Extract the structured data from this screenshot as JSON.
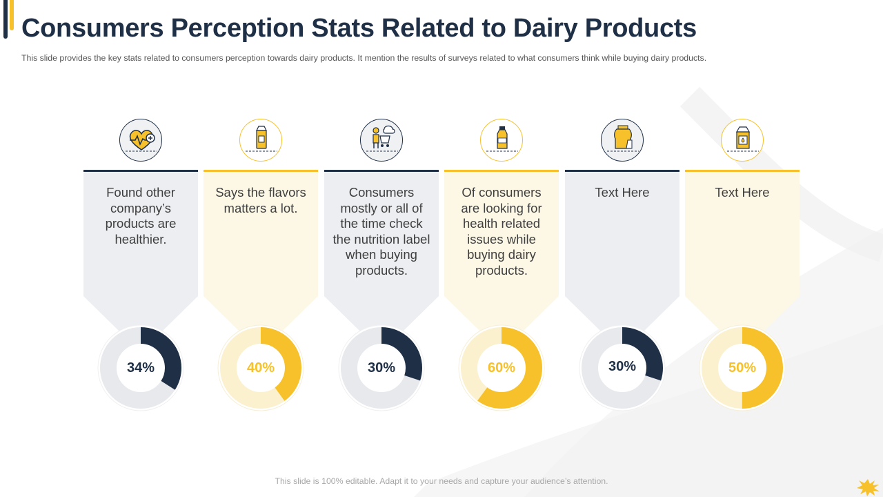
{
  "slide": {
    "title": "Consumers Perception Stats Related to Dairy Products",
    "subtitle": "This slide provides  the key stats related to consumers perception towards dairy products. It mention the results of surveys related to what consumers think while buying dairy products.",
    "footer": "This slide is 100% editable. Adapt it to your needs and capture your audience’s attention."
  },
  "colors": {
    "dark": "#1e2f46",
    "yellow": "#f6c12a",
    "dark_panel": "#eceef1",
    "yellow_panel": "#fdf8e6",
    "dark_track": "#e7e9ed",
    "yellow_track": "#fbf1cf"
  },
  "chart_data": {
    "type": "donut",
    "title": "Consumers Perception Stats Related to Dairy Products",
    "unit": "%",
    "items": [
      {
        "value": 34,
        "label": "34%",
        "text": "Found other company’s products are healthier.",
        "icon": "heart-rate-plus-icon",
        "theme": "dark"
      },
      {
        "value": 40,
        "label": "40%",
        "text": "Says the flavors matters a lot.",
        "icon": "milk-carton-icon",
        "theme": "yellow"
      },
      {
        "value": 30,
        "label": "30%",
        "text": "Consumers mostly or all of the time check the nutrition label when buying products.",
        "icon": "shopper-cart-icon",
        "theme": "dark"
      },
      {
        "value": 60,
        "label": "60%",
        "text": "Of consumers are looking for health related issues while buying dairy products.",
        "icon": "milk-bottle-icon",
        "theme": "yellow"
      },
      {
        "value": 30,
        "label": "30%",
        "text": "Text Here",
        "icon": "milk-jug-icon",
        "theme": "dark"
      },
      {
        "value": 50,
        "label": "50%",
        "text": "Text Here",
        "icon": "dairy-carton-icon",
        "theme": "yellow"
      }
    ]
  }
}
